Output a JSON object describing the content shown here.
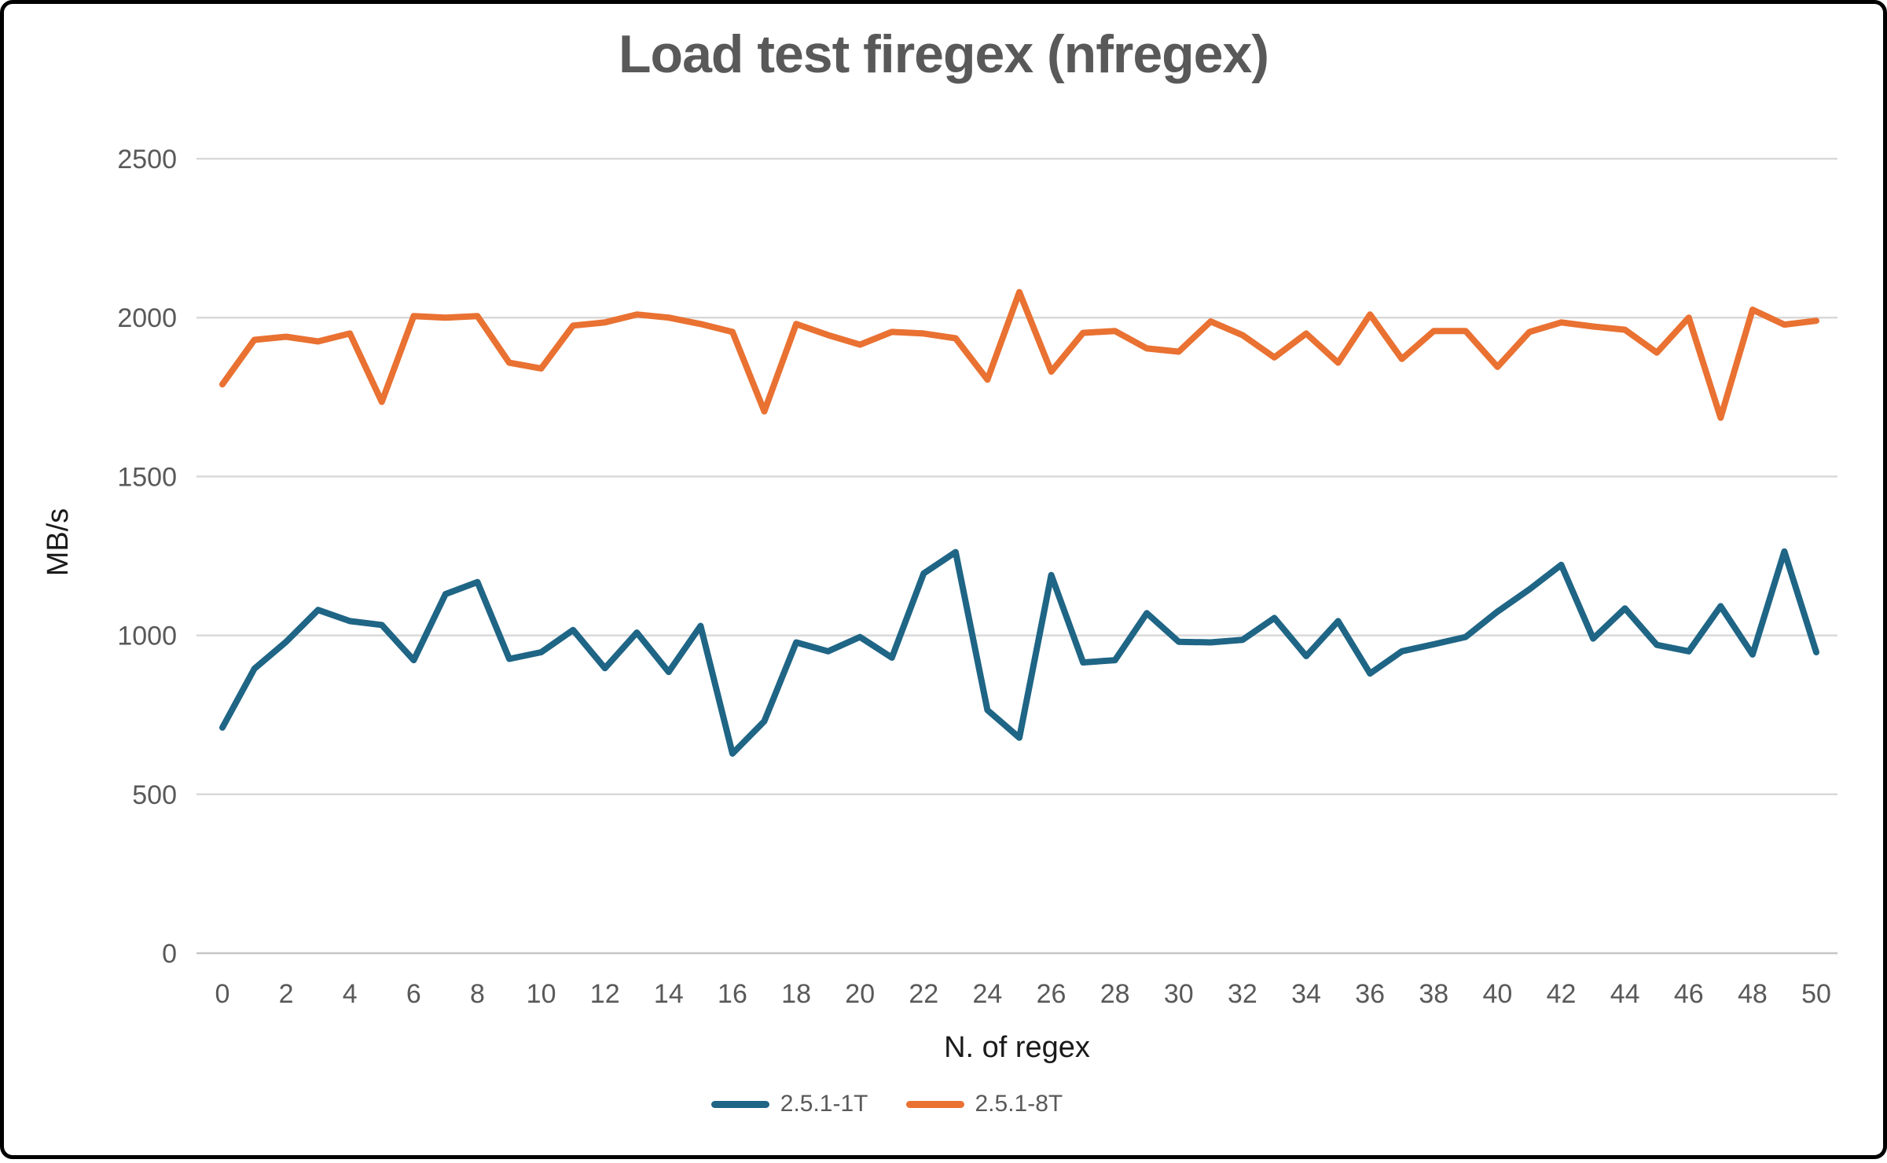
{
  "frame": {
    "background": "#ffffff",
    "border_color": "#000000"
  },
  "chart_data": {
    "type": "line",
    "title": "Load test firegex (nfregex)",
    "xlabel": "N. of regex",
    "ylabel": "MB/s",
    "x": [
      0,
      1,
      2,
      3,
      4,
      5,
      6,
      7,
      8,
      9,
      10,
      11,
      12,
      13,
      14,
      15,
      16,
      17,
      18,
      19,
      20,
      21,
      22,
      23,
      24,
      25,
      26,
      27,
      28,
      29,
      30,
      31,
      32,
      33,
      34,
      35,
      36,
      37,
      38,
      39,
      40,
      41,
      42,
      43,
      44,
      45,
      46,
      47,
      48,
      49,
      50
    ],
    "series": [
      {
        "name": "2.5.1-1T",
        "color": "#1f6585",
        "values": [
          710,
          895,
          980,
          1080,
          1045,
          1033,
          922,
          1130,
          1168,
          926,
          947,
          1017,
          897,
          1009,
          885,
          1030,
          628,
          730,
          978,
          950,
          995,
          930,
          1195,
          1262,
          765,
          678,
          1190,
          915,
          922,
          1070,
          980,
          978,
          986,
          1055,
          935,
          1045,
          880,
          950,
          972,
          995,
          1075,
          1145,
          1222,
          990,
          1085,
          970,
          950,
          1092,
          940,
          1264,
          947
        ]
      },
      {
        "name": "2.5.1-8T",
        "color": "#e97132",
        "values": [
          1790,
          1930,
          1940,
          1925,
          1950,
          1735,
          2005,
          2000,
          2005,
          1858,
          1840,
          1975,
          1985,
          2010,
          2000,
          1980,
          1955,
          1705,
          1980,
          1945,
          1915,
          1955,
          1950,
          1935,
          1805,
          2080,
          1830,
          1952,
          1958,
          1903,
          1893,
          1988,
          1945,
          1875,
          1950,
          1858,
          2010,
          1870,
          1958,
          1958,
          1845,
          1955,
          1985,
          1972,
          1962,
          1890,
          2000,
          1685,
          2025,
          1978,
          1990
        ]
      }
    ],
    "ylim": [
      0,
      2500
    ],
    "ytick_step": 500,
    "xtick_step": 2,
    "grid": true,
    "legend_position": "bottom",
    "colors": {
      "title_text": "#595959",
      "tick_labels": "#595959",
      "axis_titles": "#1a1a1a",
      "gridline": "#d9d9d9",
      "axis_line": "#c6c6c6"
    }
  }
}
